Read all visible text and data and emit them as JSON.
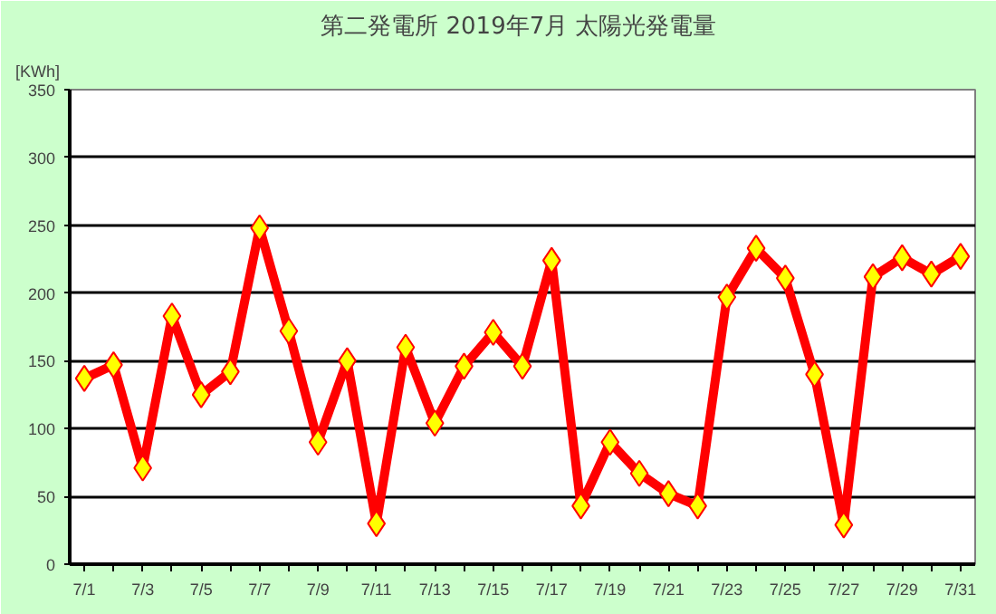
{
  "chart_data": {
    "type": "line",
    "title": "第二発電所  2019年7月 太陽光発電量",
    "ylabel": "[KWh]",
    "categories": [
      "7/1",
      null,
      "7/3",
      null,
      "7/5",
      null,
      "7/7",
      null,
      "7/9",
      null,
      "7/11",
      null,
      "7/13",
      null,
      "7/15",
      null,
      "7/17",
      null,
      "7/19",
      null,
      "7/21",
      null,
      "7/23",
      null,
      "7/25",
      null,
      "7/27",
      null,
      "7/29",
      null,
      "7/31"
    ],
    "series": [
      {
        "color": "#ff0000",
        "values": [
          137,
          147,
          71,
          183,
          125,
          142,
          248,
          172,
          90,
          150,
          30,
          160,
          104,
          146,
          171,
          146,
          224,
          43,
          90,
          67,
          52,
          43,
          197,
          233,
          211,
          140,
          29,
          212,
          226,
          214,
          227
        ]
      }
    ],
    "ylim": [
      0,
      350
    ],
    "yticks": [
      0,
      50,
      100,
      150,
      200,
      250,
      300,
      350
    ],
    "grid": "y",
    "marker": "diamond",
    "line_style": "solid"
  }
}
